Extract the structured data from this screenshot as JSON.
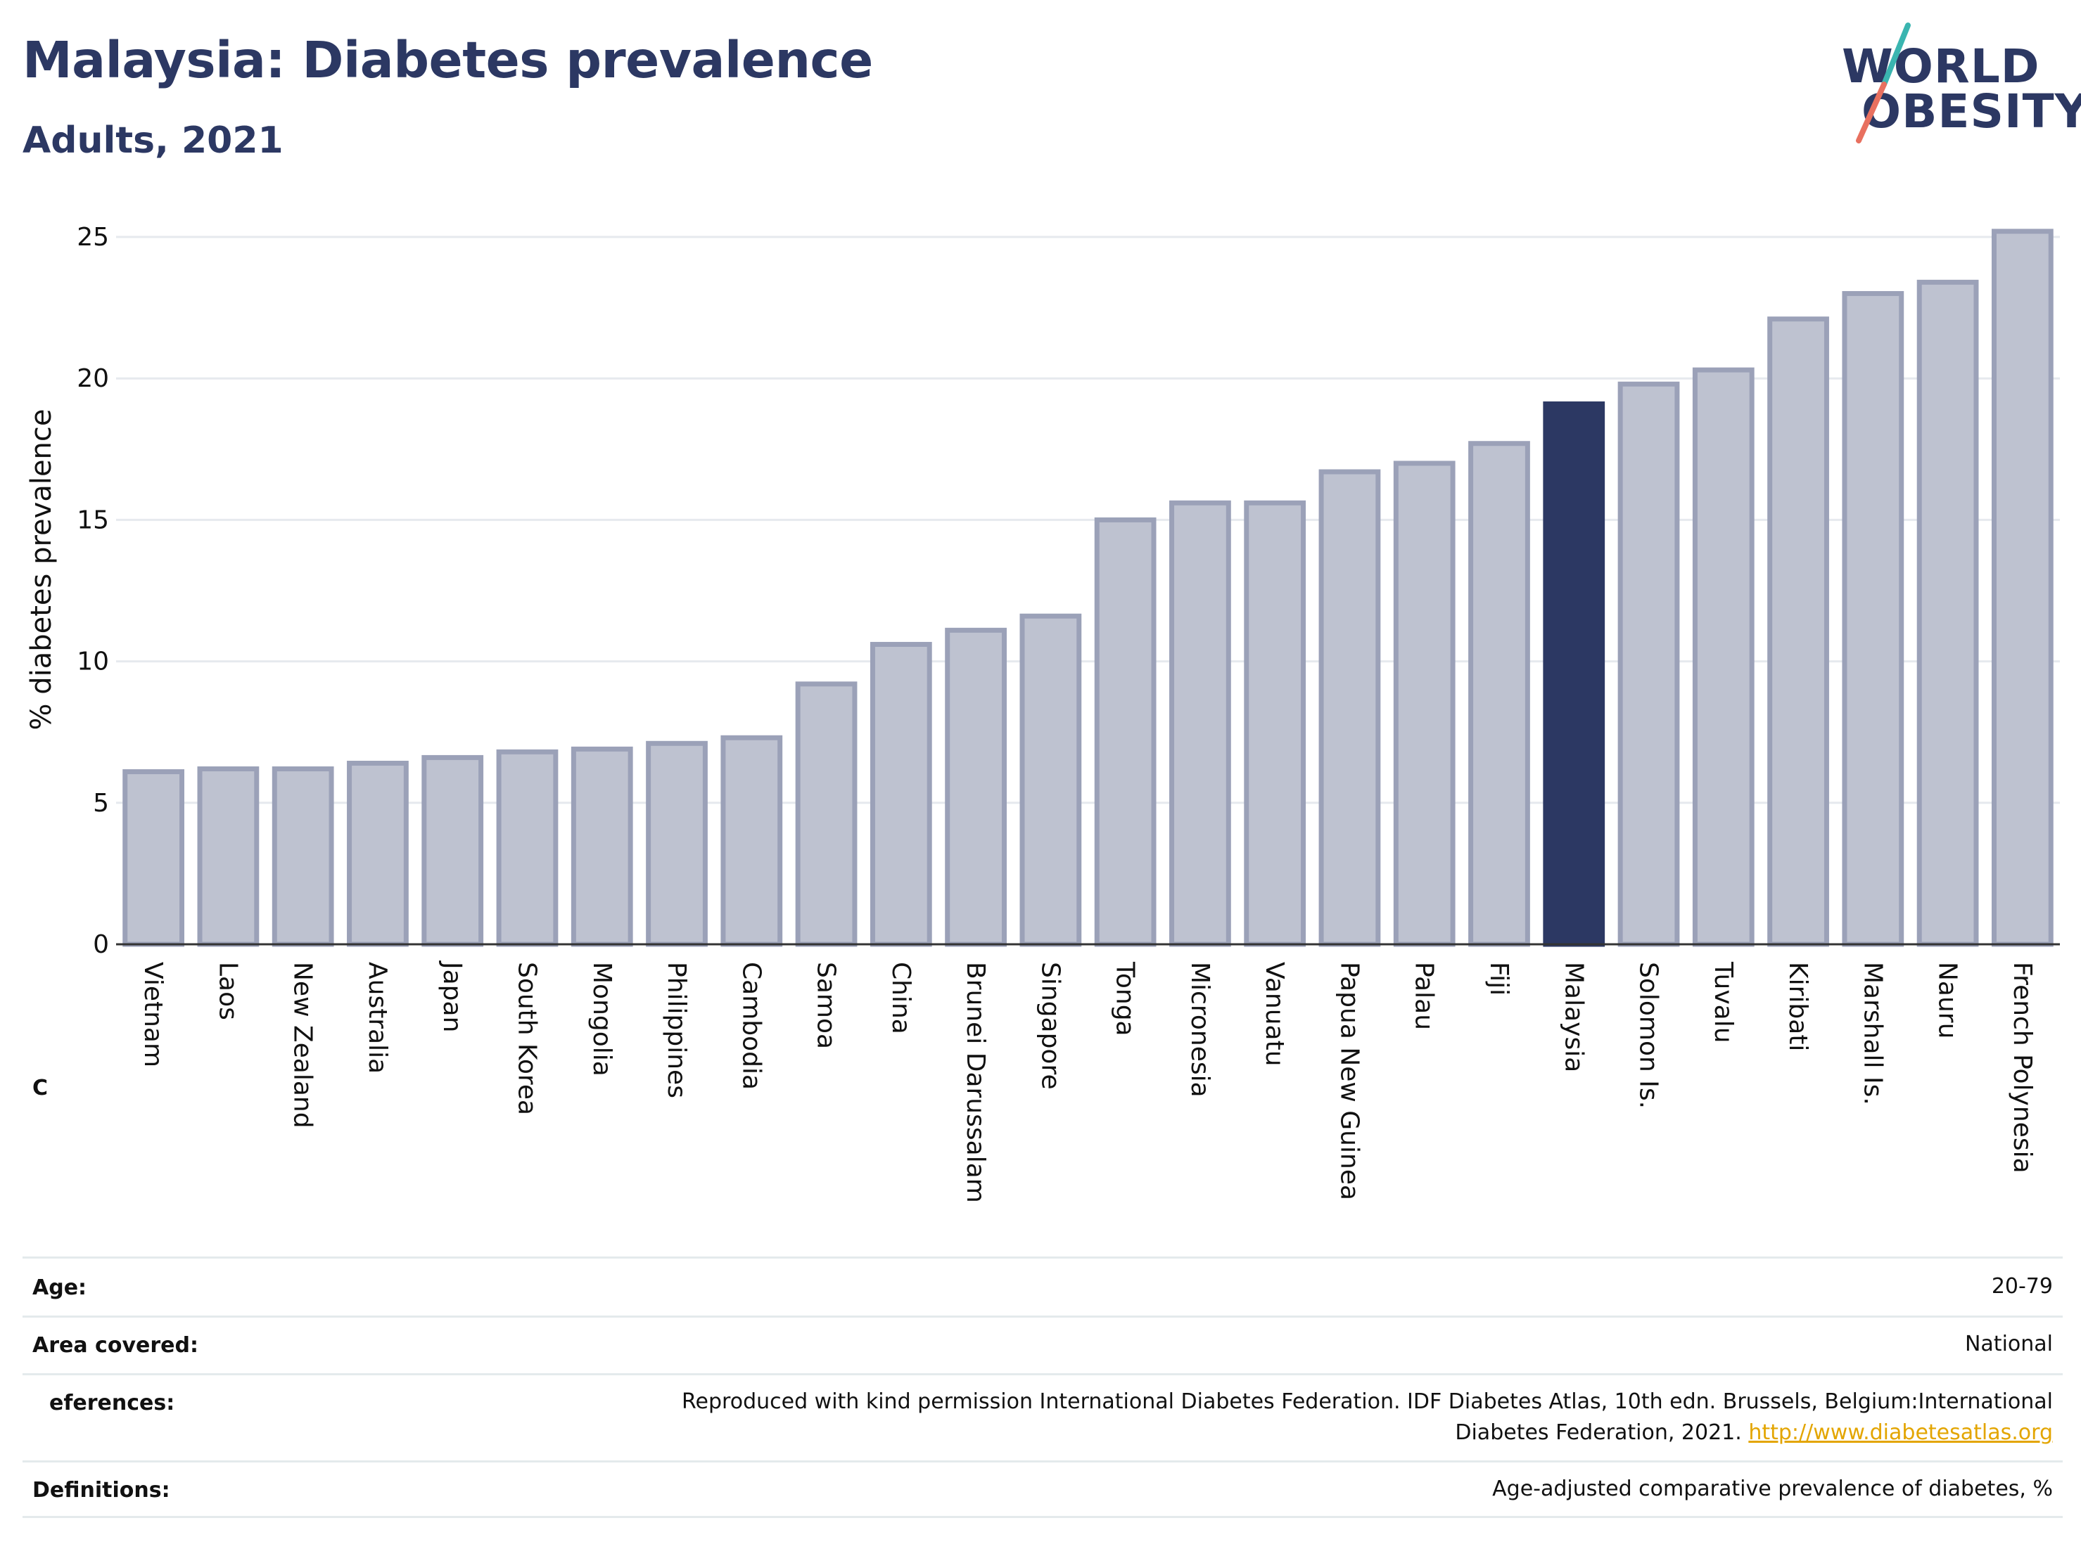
{
  "header": {
    "title": "Malaysia: Diabetes prevalence",
    "subtitle": "Adults, 2021"
  },
  "logo": {
    "line1": "WORLD",
    "line2": "OBESITY",
    "slash_colors": [
      "#3ab5b0",
      "#e8705f"
    ]
  },
  "side_label": "C",
  "chart_data": {
    "type": "bar",
    "ylabel": "% diabetes prevalence",
    "ylim": [
      0,
      26
    ],
    "yticks": [
      0,
      5,
      10,
      15,
      20,
      25
    ],
    "grid": true,
    "highlight": "Malaysia",
    "colors": {
      "bar": "#bec2d0",
      "bar_border": "#9ba1b8",
      "highlight": "#2c3863",
      "grid": "#e6e9ee"
    },
    "categories": [
      "Vietnam",
      "Laos",
      "New Zealand",
      "Australia",
      "Japan",
      "South Korea",
      "Mongolia",
      "Philippines",
      "Cambodia",
      "Samoa",
      "China",
      "Brunei Darussalam",
      "Singapore",
      "Tonga",
      "Micronesia",
      "Vanuatu",
      "Papua New Guinea",
      "Palau",
      "Fiji",
      "Malaysia",
      "Solomon Is.",
      "Tuvalu",
      "Kiribati",
      "Marshall Is.",
      "Nauru",
      "French Polynesia"
    ],
    "values": [
      6.1,
      6.2,
      6.2,
      6.4,
      6.6,
      6.8,
      6.9,
      7.1,
      7.3,
      9.2,
      10.6,
      11.1,
      11.6,
      15.0,
      15.6,
      15.6,
      16.7,
      17.0,
      17.7,
      19.1,
      19.8,
      20.3,
      22.1,
      23.0,
      23.4,
      25.2
    ]
  },
  "meta": {
    "age": {
      "label": "Age:",
      "value": "20-79"
    },
    "area": {
      "label": "Area covered:",
      "value": "National"
    },
    "references": {
      "label": "eferences:",
      "line1": "Reproduced with kind permission International Diabetes Federation.  IDF Diabetes Atlas, 10th edn. Brussels, Belgium:International",
      "line2": "Diabetes Federation, 2021.",
      "link": "http://www.diabetesatlas.org"
    },
    "definitions": {
      "label": "Definitions:",
      "value": "Age-adjusted comparative prevalence of diabetes, %"
    }
  }
}
